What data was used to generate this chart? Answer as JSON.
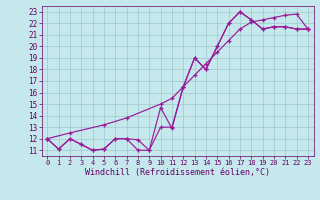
{
  "line1_x": [
    0,
    1,
    2,
    3,
    4,
    5,
    6,
    7,
    8,
    9,
    10,
    11,
    12,
    13,
    14,
    15,
    16,
    17,
    18,
    19,
    20,
    21,
    22,
    23
  ],
  "line1_y": [
    12.0,
    11.1,
    12.0,
    11.5,
    11.0,
    11.1,
    12.0,
    12.0,
    11.0,
    11.0,
    13.0,
    13.0,
    16.5,
    19.0,
    18.0,
    20.0,
    22.0,
    23.0,
    22.3,
    21.5,
    21.7,
    21.7,
    21.5,
    21.5
  ],
  "line2_x": [
    0,
    1,
    2,
    3,
    4,
    5,
    6,
    7,
    8,
    9,
    10,
    11,
    12,
    13,
    14,
    15,
    16,
    17,
    18,
    19,
    20,
    21,
    22,
    23
  ],
  "line2_y": [
    12.0,
    11.1,
    12.0,
    11.5,
    11.0,
    11.1,
    12.0,
    12.0,
    11.9,
    11.0,
    14.7,
    12.9,
    16.5,
    19.0,
    18.0,
    20.0,
    22.0,
    23.0,
    22.3,
    21.5,
    21.7,
    21.7,
    21.5,
    21.5
  ],
  "line3_x": [
    0,
    2,
    5,
    7,
    10,
    11,
    12,
    13,
    14,
    15,
    16,
    17,
    18,
    19,
    20,
    21,
    22,
    23
  ],
  "line3_y": [
    12.0,
    12.5,
    13.2,
    13.8,
    15.0,
    15.5,
    16.5,
    17.5,
    18.5,
    19.5,
    20.5,
    21.5,
    22.1,
    22.3,
    22.5,
    22.7,
    22.8,
    21.5
  ],
  "bg_color": "#c5e8ed",
  "line_color": "#991999",
  "grid_color": "#a0c8d0",
  "xlabel": "Windchill (Refroidissement éolien,°C)",
  "xlim": [
    -0.5,
    23.5
  ],
  "ylim": [
    10.5,
    23.5
  ],
  "xticks": [
    0,
    1,
    2,
    3,
    4,
    5,
    6,
    7,
    8,
    9,
    10,
    11,
    12,
    13,
    14,
    15,
    16,
    17,
    18,
    19,
    20,
    21,
    22,
    23
  ],
  "yticks": [
    11,
    12,
    13,
    14,
    15,
    16,
    17,
    18,
    19,
    20,
    21,
    22,
    23
  ],
  "xlabel_color": "#660066",
  "tick_color": "#660066",
  "font_size_tick": 5.5,
  "font_size_label": 6.0
}
